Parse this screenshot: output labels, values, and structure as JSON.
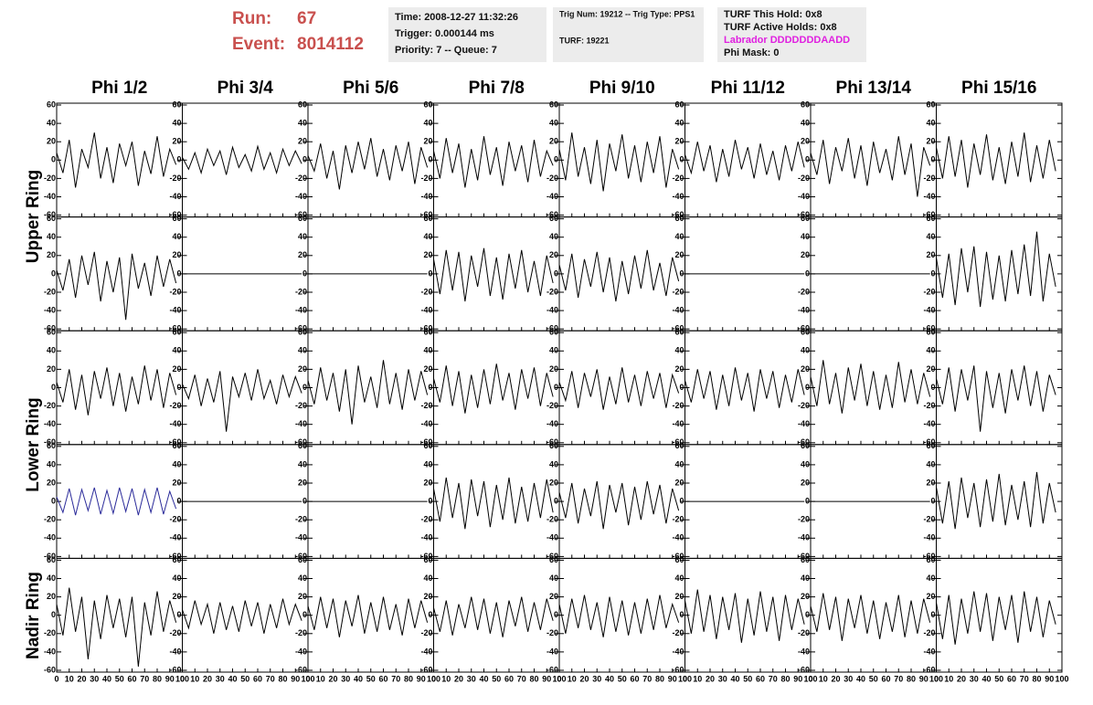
{
  "header": {
    "run_label": "Run:",
    "run": 67,
    "event_label": "Event:",
    "event": 8014112,
    "box1": [
      "Time: 2008-12-27 11:32:26",
      "Trigger: 0.000144 ms",
      "Priority: 7 -- Queue: 7"
    ],
    "box2": [
      "Trig Num: 19212 -- Trig Type: PPS1",
      "TURF: 19221"
    ],
    "box3": [
      "TURF This Hold: 0x8",
      "TURF Active Holds: 0x8",
      "Labrador DDDDDDDAADD",
      "Phi Mask: 0"
    ]
  },
  "column_labels": [
    "Phi 1/2",
    "Phi 3/4",
    "Phi 5/6",
    "Phi 7/8",
    "Phi 9/10",
    "Phi 11/12",
    "Phi 13/14",
    "Phi 15/16"
  ],
  "row_labels": [
    "Upper Ring",
    "Lower Ring",
    "Nadir Ring"
  ],
  "axes": {
    "xlim": [
      0,
      100
    ],
    "xticks": [
      0,
      10,
      20,
      30,
      40,
      50,
      60,
      70,
      80,
      90,
      100
    ],
    "ylim": [
      -62,
      62
    ],
    "yticks": [
      -60,
      -40,
      -20,
      0,
      20,
      40,
      60
    ]
  },
  "trace_color": "#000000",
  "x": [
    0,
    5,
    10,
    15,
    20,
    25,
    30,
    35,
    40,
    45,
    50,
    55,
    60,
    65,
    70,
    75,
    80,
    85,
    90,
    95
  ],
  "panels": [
    {
      "values": [
        8,
        -14,
        22,
        -30,
        12,
        -8,
        30,
        -20,
        14,
        -25,
        18,
        -6,
        20,
        -28,
        10,
        -15,
        26,
        -18,
        12,
        -5
      ]
    },
    {
      "values": [
        3,
        -10,
        8,
        -14,
        12,
        -6,
        10,
        -16,
        14,
        -8,
        6,
        -12,
        15,
        -10,
        8,
        -14,
        12,
        -6,
        10,
        -4
      ]
    },
    {
      "values": [
        5,
        -12,
        18,
        -20,
        10,
        -32,
        16,
        -14,
        20,
        -10,
        24,
        -18,
        12,
        -22,
        16,
        -12,
        20,
        -26,
        14,
        -8
      ]
    },
    {
      "values": [
        10,
        -20,
        24,
        -14,
        18,
        -30,
        12,
        -22,
        26,
        -16,
        14,
        -28,
        20,
        -12,
        16,
        -24,
        22,
        -18,
        10,
        -6
      ]
    },
    {
      "values": [
        12,
        -22,
        30,
        -18,
        14,
        -26,
        22,
        -34,
        18,
        -12,
        28,
        -20,
        16,
        -24,
        20,
        -14,
        26,
        -30,
        12,
        -10
      ]
    },
    {
      "values": [
        6,
        -14,
        20,
        -12,
        16,
        -24,
        12,
        -18,
        22,
        -10,
        14,
        -20,
        18,
        -16,
        10,
        -22,
        16,
        -12,
        20,
        -8
      ]
    },
    {
      "values": [
        8,
        -16,
        22,
        -26,
        14,
        -12,
        24,
        -20,
        16,
        -28,
        20,
        -14,
        12,
        -22,
        26,
        -16,
        18,
        -40,
        14,
        -6
      ]
    },
    {
      "values": [
        14,
        -20,
        26,
        -18,
        22,
        -30,
        18,
        -16,
        28,
        -22,
        14,
        -26,
        20,
        -18,
        30,
        -24,
        16,
        -20,
        22,
        -12
      ]
    },
    {
      "values": [
        4,
        -18,
        16,
        -26,
        20,
        -12,
        24,
        -30,
        14,
        -20,
        18,
        -50,
        22,
        -16,
        12,
        -24,
        20,
        -14,
        16,
        -10
      ]
    },
    {
      "values": [
        0,
        0,
        0,
        0,
        0,
        0,
        0,
        0,
        0,
        0,
        0,
        0,
        0,
        0,
        0,
        0,
        0,
        0,
        0,
        0
      ]
    },
    {
      "values": [
        0,
        0,
        0,
        0,
        0,
        0,
        0,
        0,
        0,
        0,
        0,
        0,
        0,
        0,
        0,
        0,
        0,
        0,
        0,
        0
      ]
    },
    {
      "values": [
        16,
        -22,
        26,
        -18,
        24,
        -30,
        20,
        -14,
        28,
        -24,
        18,
        -28,
        22,
        -16,
        26,
        -20,
        14,
        -24,
        20,
        -10
      ]
    },
    {
      "values": [
        10,
        -18,
        22,
        -26,
        16,
        -14,
        24,
        -20,
        18,
        -30,
        14,
        -22,
        20,
        -16,
        26,
        -18,
        12,
        -24,
        18,
        -8
      ]
    },
    {
      "values": [
        0,
        0,
        0,
        0,
        0,
        0,
        0,
        0,
        0,
        0,
        0,
        0,
        0,
        0,
        0,
        0,
        0,
        0,
        0,
        0
      ]
    },
    {
      "values": [
        0,
        0,
        0,
        0,
        0,
        0,
        0,
        0,
        0,
        0,
        0,
        0,
        0,
        0,
        0,
        0,
        0,
        0,
        0,
        0
      ]
    },
    {
      "values": [
        18,
        -26,
        22,
        -34,
        28,
        -20,
        30,
        -36,
        24,
        -28,
        20,
        -30,
        26,
        -22,
        32,
        -24,
        46,
        -30,
        22,
        -14
      ]
    },
    {
      "values": [
        6,
        -16,
        20,
        -24,
        14,
        -30,
        18,
        -12,
        22,
        -20,
        16,
        -26,
        12,
        -18,
        24,
        -14,
        20,
        -22,
        16,
        -8
      ]
    },
    {
      "values": [
        4,
        -12,
        14,
        -20,
        10,
        -16,
        18,
        -48,
        12,
        -10,
        16,
        -14,
        20,
        -12,
        8,
        -18,
        14,
        -10,
        12,
        -6
      ]
    },
    {
      "values": [
        8,
        -18,
        22,
        -14,
        16,
        -26,
        20,
        -40,
        24,
        -16,
        12,
        -22,
        30,
        -18,
        16,
        -24,
        20,
        -14,
        18,
        -8
      ]
    },
    {
      "values": [
        10,
        -16,
        24,
        -20,
        18,
        -28,
        14,
        -22,
        20,
        -18,
        26,
        -14,
        16,
        -24,
        20,
        -12,
        22,
        -20,
        16,
        -10
      ]
    },
    {
      "values": [
        6,
        -14,
        18,
        -22,
        16,
        -10,
        20,
        -24,
        12,
        -18,
        22,
        -16,
        14,
        -20,
        18,
        -12,
        16,
        -22,
        14,
        -6
      ]
    },
    {
      "values": [
        8,
        -16,
        20,
        -12,
        18,
        -24,
        14,
        -20,
        22,
        -14,
        16,
        -26,
        20,
        -12,
        18,
        -22,
        14,
        -16,
        20,
        -8
      ]
    },
    {
      "values": [
        12,
        -20,
        30,
        -18,
        16,
        -28,
        22,
        -14,
        26,
        -20,
        18,
        -24,
        14,
        -22,
        28,
        -16,
        20,
        -18,
        16,
        -10
      ]
    },
    {
      "values": [
        10,
        -18,
        22,
        -26,
        20,
        -14,
        24,
        -48,
        18,
        -22,
        16,
        -28,
        20,
        -14,
        24,
        -20,
        18,
        -26,
        14,
        -8
      ]
    },
    {
      "color": "#2b2b9a",
      "values": [
        5,
        -12,
        14,
        -15,
        13,
        -10,
        15,
        -14,
        12,
        -13,
        15,
        -11,
        14,
        -15,
        13,
        -12,
        15,
        -14,
        11,
        -8
      ]
    },
    {
      "values": [
        0,
        0,
        0,
        0,
        0,
        0,
        0,
        0,
        0,
        0,
        0,
        0,
        0,
        0,
        0,
        0,
        0,
        0,
        0,
        0
      ]
    },
    {
      "values": [
        0,
        0,
        0,
        0,
        0,
        0,
        0,
        0,
        0,
        0,
        0,
        0,
        0,
        0,
        0,
        0,
        0,
        0,
        0,
        0
      ]
    },
    {
      "values": [
        14,
        -22,
        26,
        -18,
        20,
        -30,
        24,
        -16,
        22,
        -28,
        18,
        -20,
        26,
        -24,
        16,
        -22,
        20,
        -18,
        24,
        -12
      ]
    },
    {
      "values": [
        10,
        -18,
        20,
        -24,
        14,
        -16,
        22,
        -30,
        18,
        -12,
        20,
        -26,
        16,
        -20,
        22,
        -14,
        18,
        -24,
        14,
        -10
      ]
    },
    {
      "values": [
        0,
        0,
        0,
        0,
        0,
        0,
        0,
        0,
        0,
        0,
        0,
        0,
        0,
        0,
        0,
        0,
        0,
        0,
        0,
        0
      ]
    },
    {
      "values": [
        0,
        0,
        0,
        0,
        0,
        0,
        0,
        0,
        0,
        0,
        0,
        0,
        0,
        0,
        0,
        0,
        0,
        0,
        0,
        0
      ]
    },
    {
      "values": [
        16,
        -24,
        22,
        -30,
        26,
        -18,
        20,
        -28,
        24,
        -22,
        30,
        -26,
        18,
        -20,
        22,
        -28,
        32,
        -24,
        20,
        -12
      ]
    },
    {
      "values": [
        12,
        -22,
        30,
        -18,
        20,
        -48,
        16,
        -26,
        22,
        -14,
        18,
        -24,
        20,
        -56,
        14,
        -22,
        26,
        -18,
        16,
        -8
      ]
    },
    {
      "values": [
        6,
        -14,
        16,
        -10,
        12,
        -20,
        14,
        -16,
        10,
        -18,
        16,
        -12,
        14,
        -20,
        12,
        -14,
        18,
        -10,
        12,
        -6
      ]
    },
    {
      "values": [
        10,
        -16,
        20,
        -14,
        18,
        -24,
        16,
        -12,
        22,
        -20,
        14,
        -18,
        20,
        -16,
        12,
        -22,
        18,
        -14,
        16,
        -8
      ]
    },
    {
      "values": [
        8,
        -18,
        16,
        -22,
        12,
        -14,
        20,
        -16,
        18,
        -20,
        14,
        -24,
        16,
        -12,
        20,
        -18,
        14,
        -16,
        18,
        -6
      ]
    },
    {
      "values": [
        12,
        -20,
        18,
        -14,
        22,
        -16,
        14,
        -24,
        20,
        -18,
        16,
        -22,
        14,
        -20,
        18,
        -16,
        22,
        -14,
        12,
        -8
      ]
    },
    {
      "values": [
        16,
        -20,
        28,
        -18,
        22,
        -26,
        20,
        -16,
        24,
        -30,
        18,
        -22,
        26,
        -18,
        20,
        -28,
        22,
        -16,
        18,
        -10
      ]
    },
    {
      "values": [
        10,
        -18,
        24,
        -16,
        20,
        -28,
        18,
        -14,
        22,
        -20,
        16,
        -26,
        14,
        -18,
        22,
        -24,
        16,
        -20,
        18,
        -8
      ]
    },
    {
      "values": [
        14,
        -26,
        22,
        -32,
        18,
        -20,
        26,
        -18,
        24,
        -28,
        20,
        -16,
        22,
        -30,
        26,
        -18,
        20,
        -24,
        16,
        -10
      ]
    }
  ]
}
